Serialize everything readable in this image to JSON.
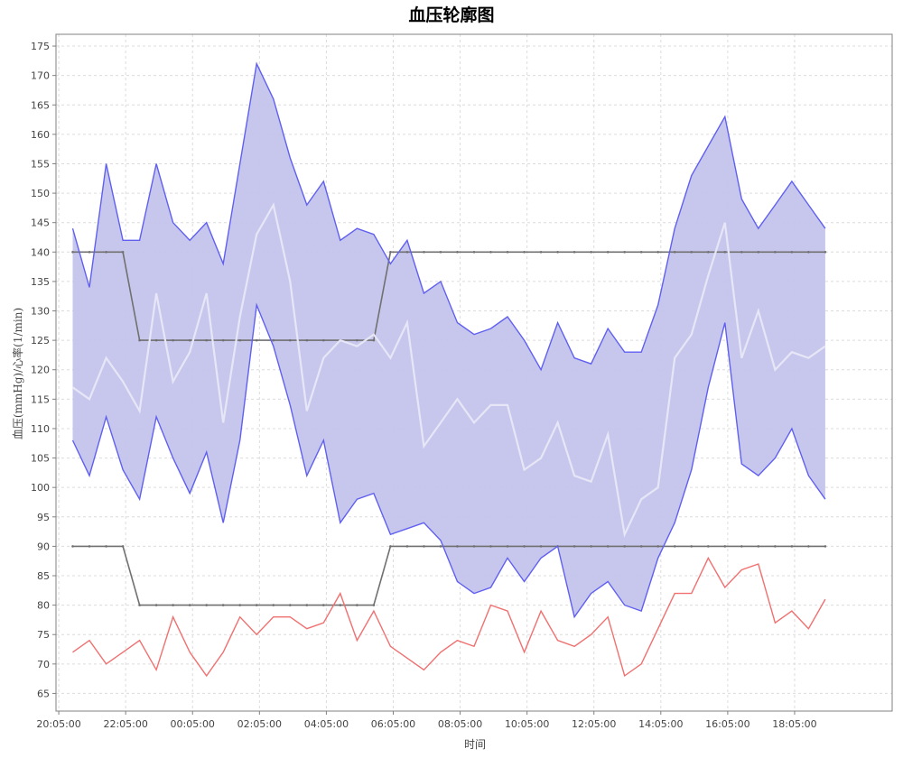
{
  "chart_data": {
    "type": "line",
    "title": "血压轮廓图",
    "xlabel": "时间",
    "ylabel": "血压(mmHg)/心率(1/min)",
    "ylim": [
      62,
      177
    ],
    "yticks": [
      65,
      70,
      75,
      80,
      85,
      90,
      95,
      100,
      105,
      110,
      115,
      120,
      125,
      130,
      135,
      140,
      145,
      150,
      155,
      160,
      165,
      170,
      175
    ],
    "xlim": [
      "20:00",
      "21:00 (+1d)"
    ],
    "xticks": [
      "20:05:00",
      "22:05:00",
      "00:05:00",
      "02:05:00",
      "04:05:00",
      "06:05:00",
      "08:05:00",
      "10:05:00",
      "12:05:00",
      "14:05:00",
      "16:05:00",
      "18:05:00"
    ],
    "grid": true,
    "colors": {
      "systolic": "#6060f0",
      "diastolic": "#6060f0",
      "band_fill": "#c4c4ec",
      "mean": "#e6e6f6",
      "heart_rate": "#f07070",
      "limits": "#707070"
    },
    "x": [
      "20:30",
      "21:00",
      "21:30",
      "22:00",
      "22:30",
      "23:00",
      "23:30",
      "00:00",
      "00:30",
      "01:00",
      "01:30",
      "02:00",
      "02:30",
      "03:00",
      "03:30",
      "04:00",
      "04:30",
      "05:00",
      "05:30",
      "06:00",
      "06:30",
      "07:00",
      "07:30",
      "08:00",
      "08:30",
      "09:00",
      "09:30",
      "10:00",
      "10:30",
      "11:00",
      "11:30",
      "12:00",
      "12:30",
      "13:00",
      "13:30",
      "14:00",
      "14:30",
      "15:00",
      "15:30",
      "16:00",
      "16:30",
      "17:00",
      "17:30",
      "18:00",
      "18:30",
      "19:00"
    ],
    "series": [
      {
        "role": "systolic",
        "values": [
          144,
          134,
          155,
          142,
          142,
          155,
          145,
          142,
          145,
          138,
          155,
          172,
          166,
          156,
          148,
          152,
          142,
          144,
          143,
          138,
          142,
          133,
          135,
          128,
          126,
          127,
          129,
          125,
          120,
          128,
          122,
          121,
          127,
          123,
          123,
          131,
          144,
          153,
          158,
          163,
          149,
          144,
          148,
          152,
          148,
          144
        ]
      },
      {
        "role": "diastolic",
        "values": [
          108,
          102,
          112,
          103,
          98,
          112,
          105,
          99,
          106,
          94,
          108,
          131,
          124,
          114,
          102,
          108,
          94,
          98,
          99,
          92,
          93,
          94,
          91,
          84,
          82,
          83,
          88,
          84,
          88,
          90,
          78,
          82,
          84,
          80,
          79,
          88,
          94,
          103,
          117,
          128,
          104,
          102,
          105,
          110,
          102,
          98
        ]
      },
      {
        "role": "mean",
        "values": [
          117,
          115,
          122,
          118,
          113,
          133,
          118,
          123,
          133,
          111,
          129,
          143,
          148,
          135,
          113,
          122,
          125,
          124,
          126,
          122,
          128,
          107,
          111,
          115,
          111,
          114,
          114,
          103,
          105,
          111,
          102,
          101,
          109,
          92,
          98,
          100,
          122,
          126,
          136,
          145,
          122,
          130,
          120,
          123,
          122,
          124
        ]
      },
      {
        "role": "heart_rate",
        "values": [
          72,
          74,
          70,
          72,
          74,
          69,
          78,
          72,
          68,
          72,
          78,
          75,
          78,
          78,
          76,
          77,
          82,
          74,
          79,
          73,
          71,
          69,
          72,
          74,
          73,
          80,
          79,
          72,
          79,
          74,
          73,
          75,
          78,
          68,
          70,
          76,
          82,
          82,
          88,
          83,
          86,
          87,
          77,
          79,
          76,
          81
        ]
      }
    ],
    "limits": {
      "systolic_upper": {
        "values": [
          140,
          140,
          140,
          140,
          125,
          125,
          125,
          125,
          125,
          125,
          125,
          125,
          125,
          125,
          125,
          125,
          125,
          125,
          125,
          140,
          140,
          140,
          140,
          140,
          140,
          140,
          140,
          140,
          140,
          140,
          140,
          140,
          140,
          140,
          140,
          140,
          140,
          140,
          140,
          140,
          140,
          140,
          140,
          140,
          140,
          140
        ]
      },
      "diastolic_upper": {
        "values": [
          90,
          90,
          90,
          90,
          80,
          80,
          80,
          80,
          80,
          80,
          80,
          80,
          80,
          80,
          80,
          80,
          80,
          80,
          80,
          90,
          90,
          90,
          90,
          90,
          90,
          90,
          90,
          90,
          90,
          90,
          90,
          90,
          90,
          90,
          90,
          90,
          90,
          90,
          90,
          90,
          90,
          90,
          90,
          90,
          90,
          90
        ]
      }
    }
  }
}
